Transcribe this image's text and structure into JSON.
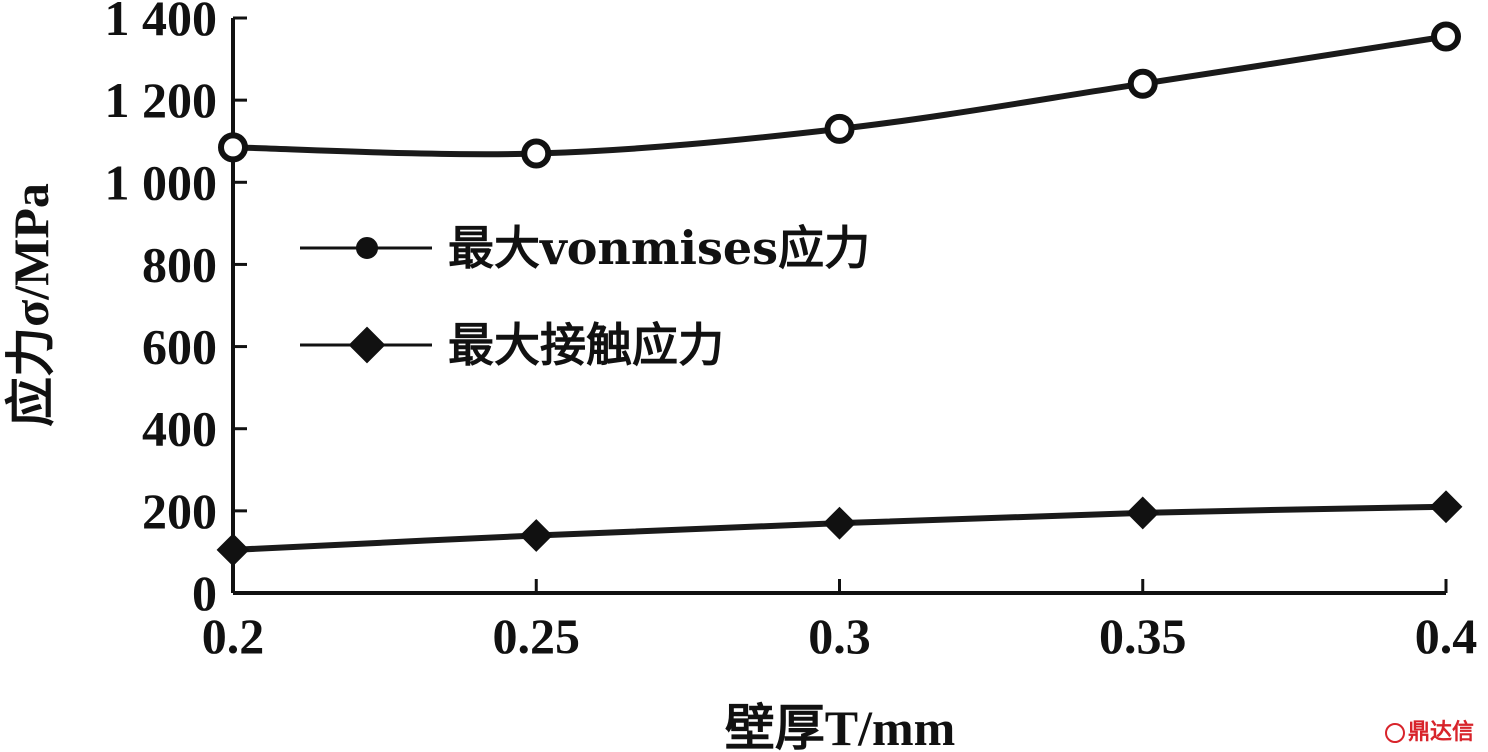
{
  "chart_data": {
    "type": "line",
    "x": [
      0.2,
      0.25,
      0.3,
      0.35,
      0.4
    ],
    "x_tick_labels": [
      "0.2",
      "0.25",
      "0.3",
      "0.35",
      "0.4"
    ],
    "y_tick_labels": [
      "0",
      "200",
      "400",
      "600",
      "800",
      "1 000",
      "1 200",
      "1 400"
    ],
    "y_ticks": [
      0,
      200,
      400,
      600,
      800,
      1000,
      1200,
      1400
    ],
    "xlim": [
      0.2,
      0.4
    ],
    "ylim": [
      0,
      1400
    ],
    "xlabel": "壁厚T/mm",
    "ylabel": "应力σ/MPa",
    "grid": false,
    "legend_position": "center-left",
    "series": [
      {
        "name": "最大vonmises应力",
        "marker": "circle",
        "color": "#1a1a1a",
        "values": [
          1085,
          1070,
          1130,
          1240,
          1355
        ]
      },
      {
        "name": "最大接触应力",
        "marker": "diamond",
        "color": "#1a1a1a",
        "values": [
          105,
          140,
          170,
          195,
          210
        ]
      }
    ]
  },
  "watermark": "鼎达信"
}
